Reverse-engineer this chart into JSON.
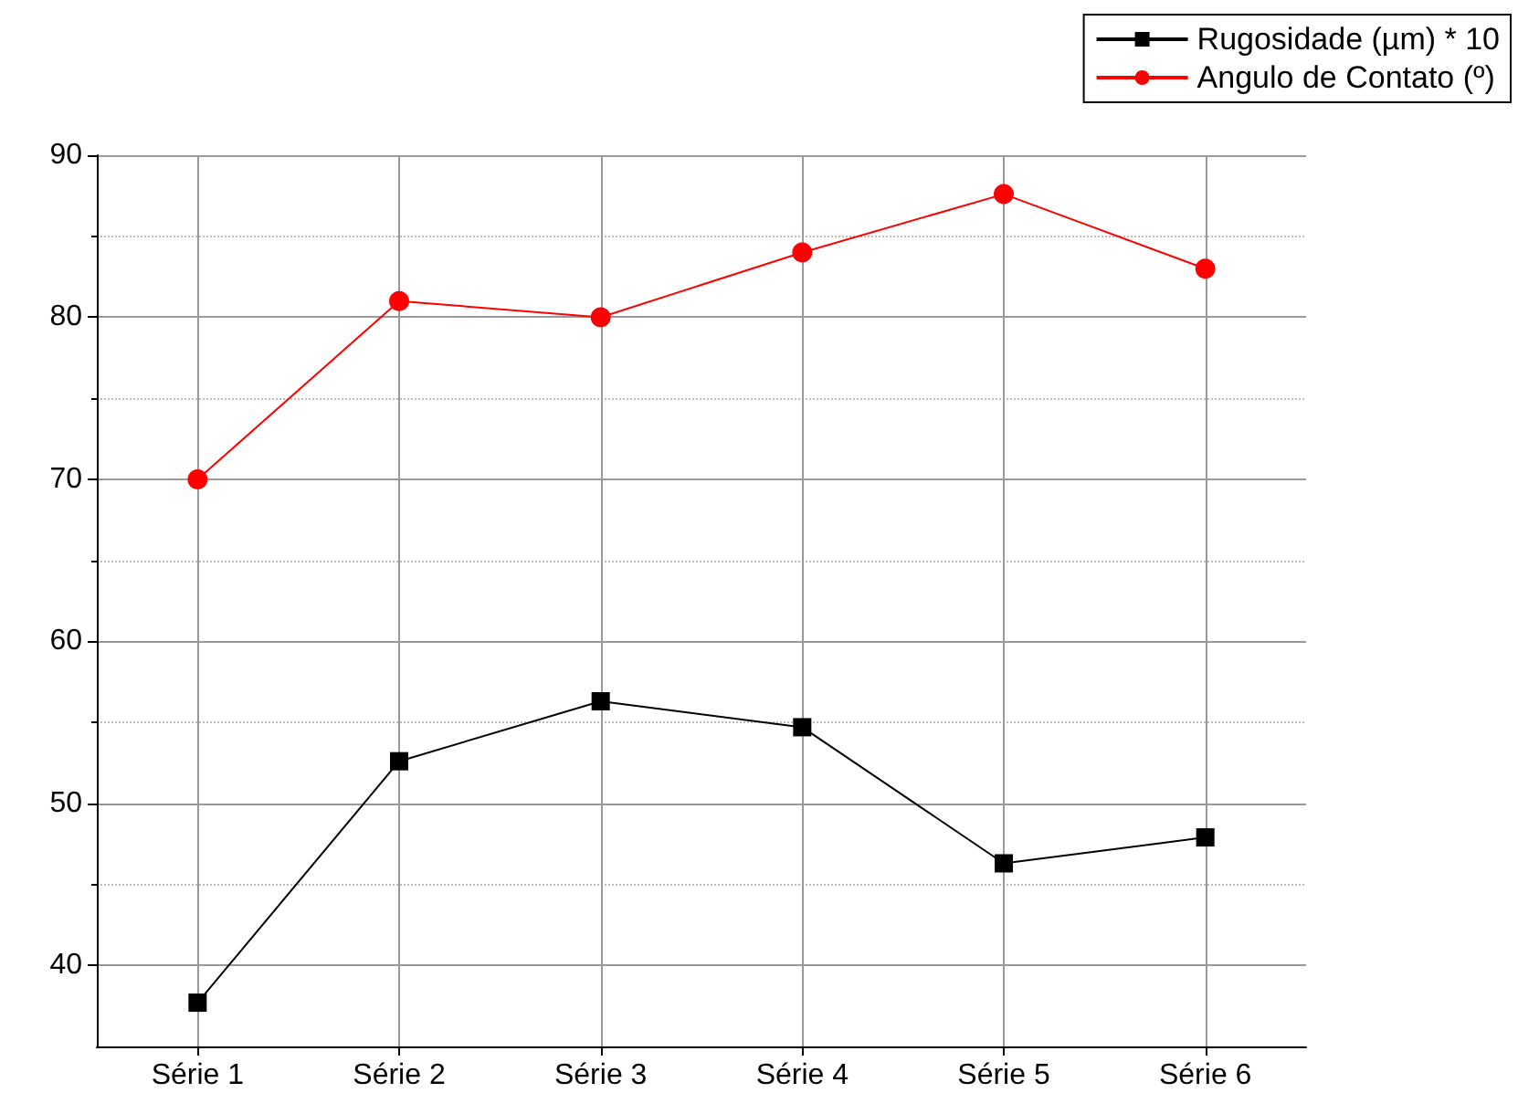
{
  "chart_data": {
    "type": "line",
    "categories": [
      "Série 1",
      "Série 2",
      "Série 3",
      "Série 4",
      "Série 5",
      "Série 6"
    ],
    "series": [
      {
        "name": "Rugosidade (µm) * 10",
        "color": "#000000",
        "marker": "square",
        "values": [
          37.7,
          52.6,
          56.3,
          54.7,
          46.3,
          47.9
        ]
      },
      {
        "name": "Angulo de Contato (º)",
        "color": "#ff0000",
        "marker": "circle",
        "values": [
          70,
          81,
          80,
          84,
          87.6,
          83
        ]
      }
    ],
    "ylim": [
      35,
      90
    ],
    "yticks": [
      40,
      50,
      60,
      70,
      80,
      90
    ],
    "grid": true,
    "legend": "top right",
    "line_style": "solid"
  }
}
